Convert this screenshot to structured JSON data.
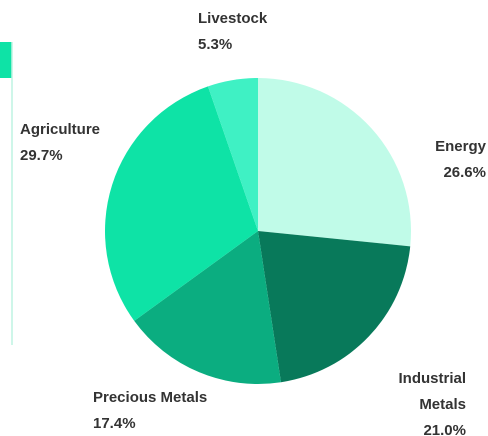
{
  "chart_data": {
    "type": "pie",
    "categories": [
      "Energy",
      "Industrial Metals",
      "Precious Metals",
      "Agriculture",
      "Livestock"
    ],
    "values": [
      26.6,
      21.0,
      17.4,
      29.7,
      5.3
    ],
    "value_labels": [
      "26.6%",
      "21.0%",
      "17.4%",
      "29.7%",
      "5.3%"
    ],
    "colors": [
      "#c0fbe8",
      "#08795a",
      "#0bad80",
      "#0ee3a6",
      "#3ff1c4"
    ]
  }
}
